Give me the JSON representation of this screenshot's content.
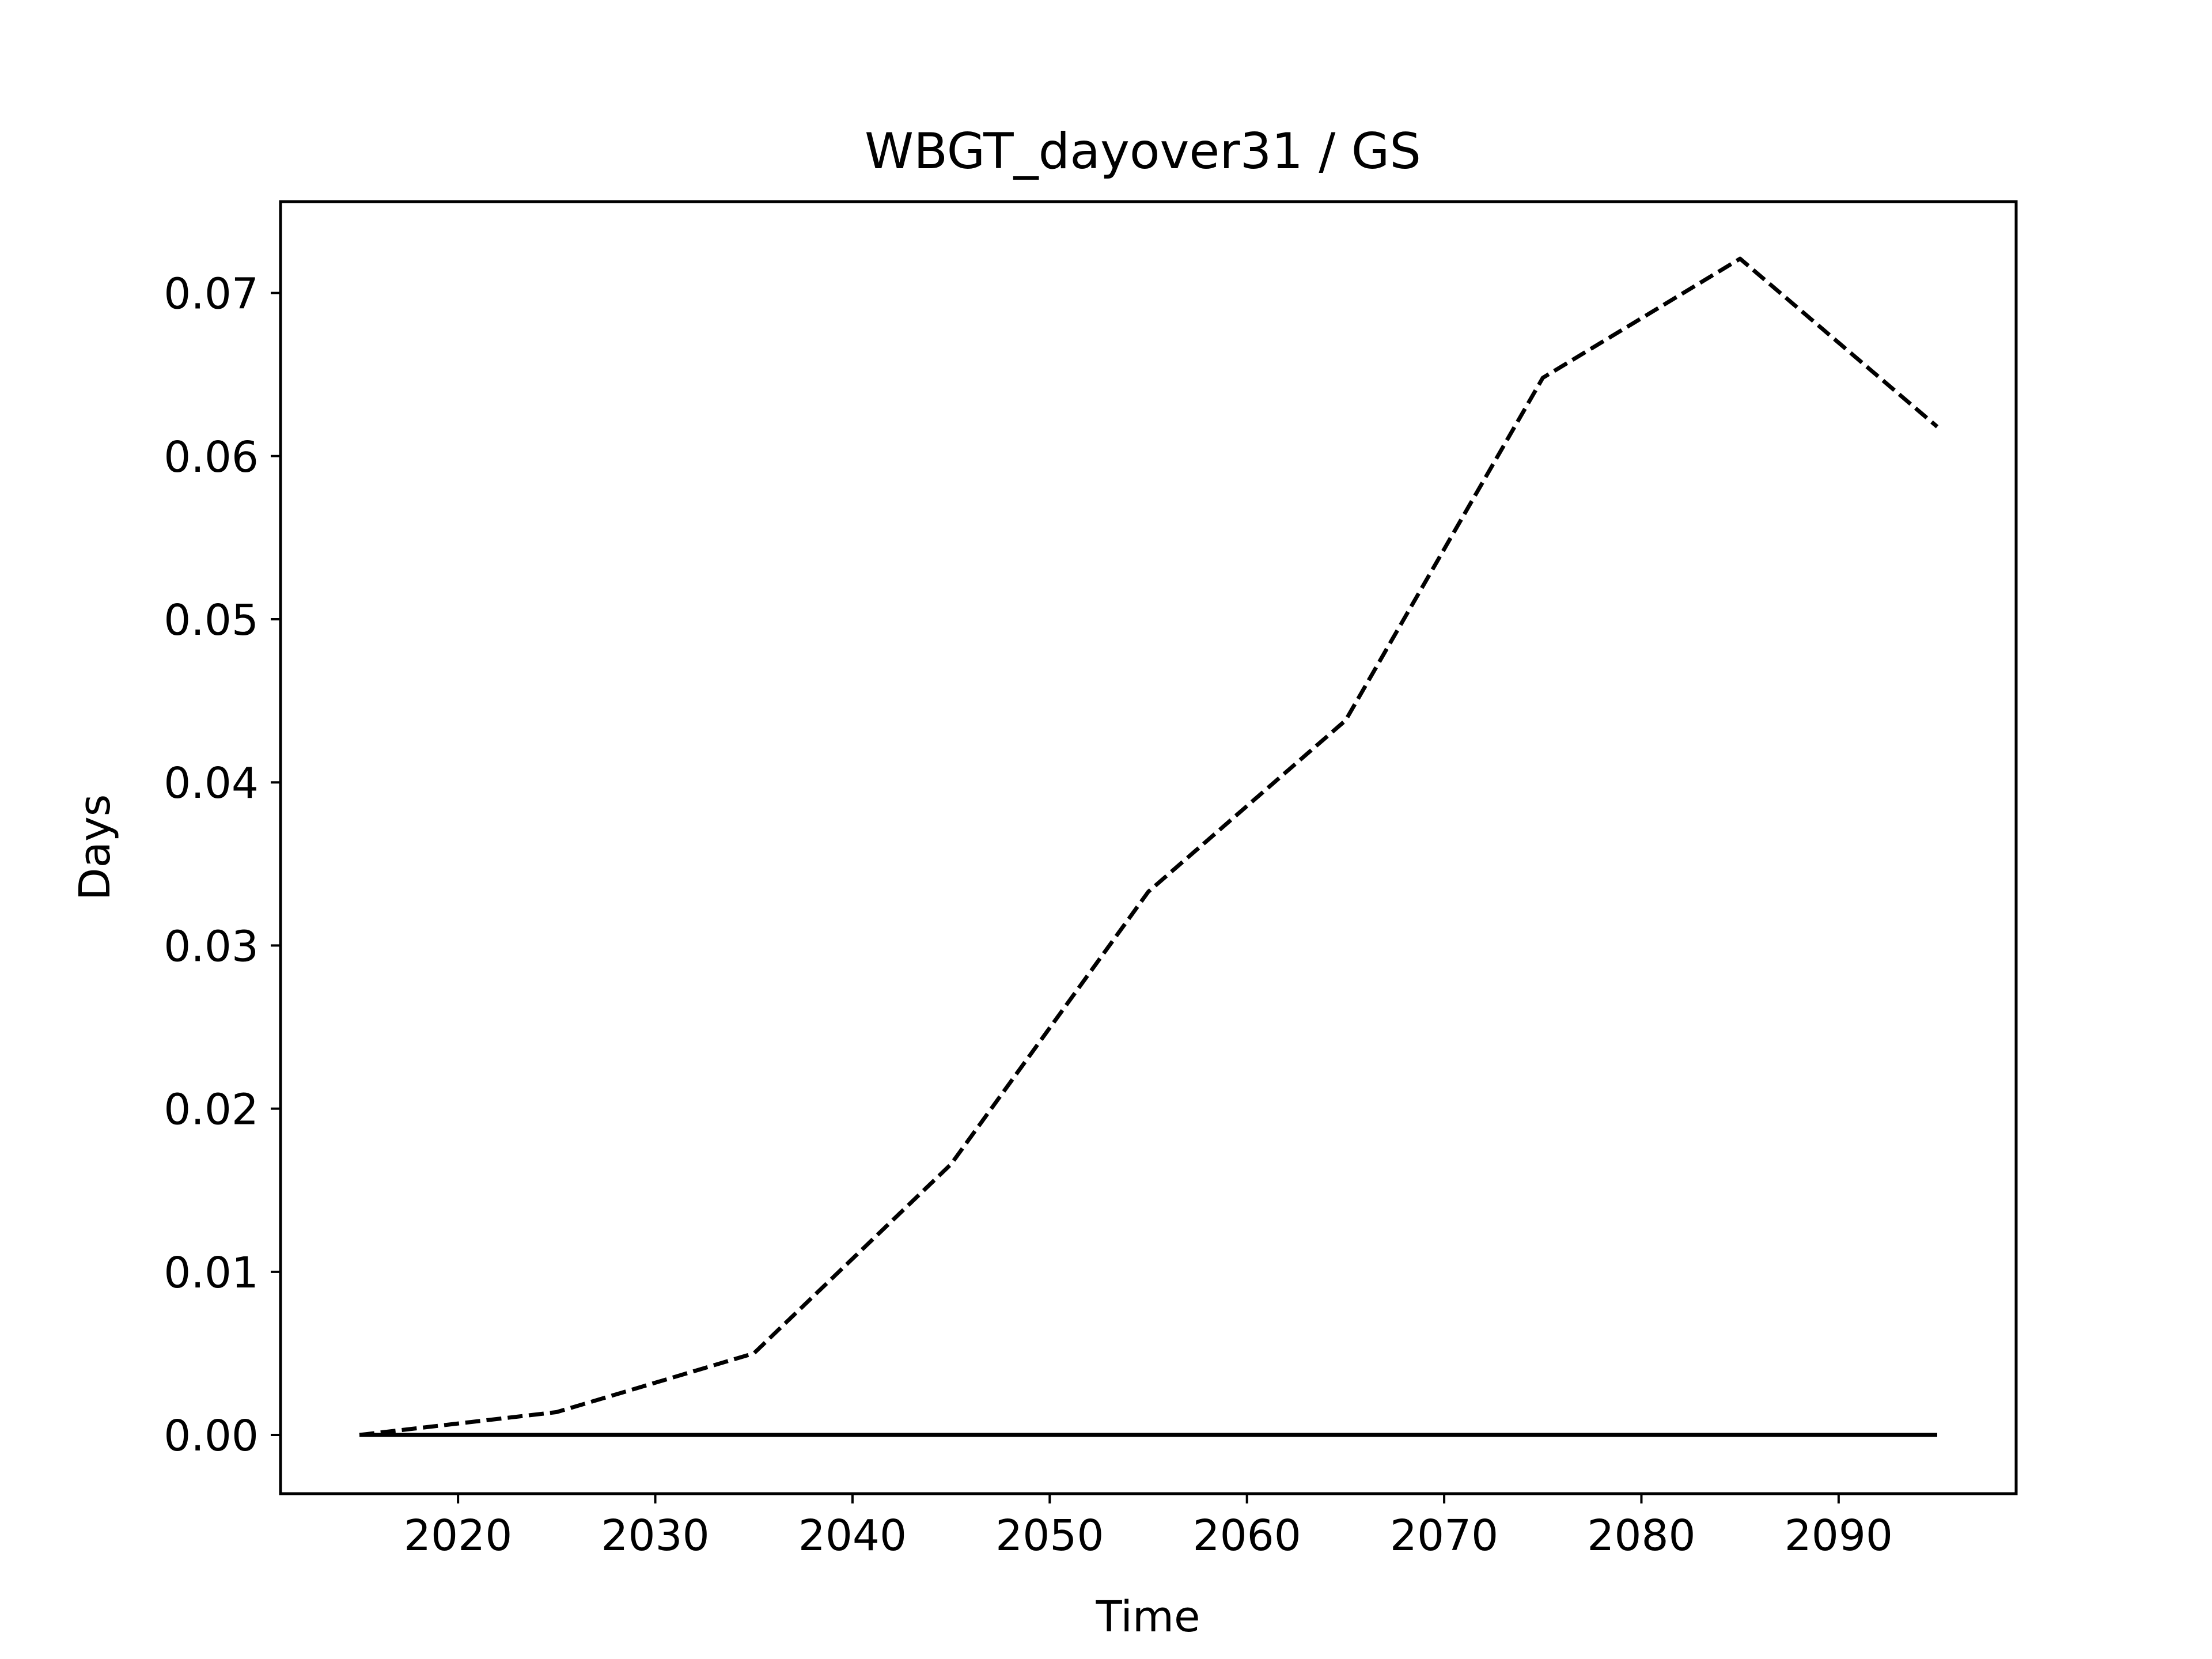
{
  "chart_data": {
    "type": "line",
    "title": "WBGT_dayover31 / GS",
    "xlabel": "Time",
    "ylabel": "Days",
    "xlim": [
      2011,
      2099
    ],
    "ylim": [
      -0.0036,
      0.0756
    ],
    "x_ticks": [
      2020,
      2030,
      2040,
      2050,
      2060,
      2070,
      2080,
      2090
    ],
    "x_tick_labels": [
      "2020",
      "2030",
      "2040",
      "2050",
      "2060",
      "2070",
      "2080",
      "2090"
    ],
    "y_ticks": [
      0.0,
      0.01,
      0.02,
      0.03,
      0.04,
      0.05,
      0.06,
      0.07
    ],
    "y_tick_labels": [
      "0.00",
      "0.01",
      "0.02",
      "0.03",
      "0.04",
      "0.05",
      "0.06",
      "0.07"
    ],
    "grid": false,
    "legend": "none",
    "series": [
      {
        "line_style": "dashed",
        "color": "#000000",
        "x": [
          2015,
          2025,
          2035,
          2045,
          2055,
          2065,
          2075,
          2085,
          2095
        ],
        "values": [
          0.0,
          0.0014,
          0.005,
          0.0166,
          0.0333,
          0.0438,
          0.0648,
          0.0721,
          0.0618
        ]
      },
      {
        "line_style": "solid",
        "color": "#000000",
        "x": [
          2015,
          2025,
          2035,
          2045,
          2055,
          2065,
          2075,
          2085,
          2095
        ],
        "values": [
          0.0,
          0.0,
          0.0,
          0.0,
          0.0,
          0.0,
          0.0,
          0.0,
          0.0
        ]
      }
    ]
  }
}
